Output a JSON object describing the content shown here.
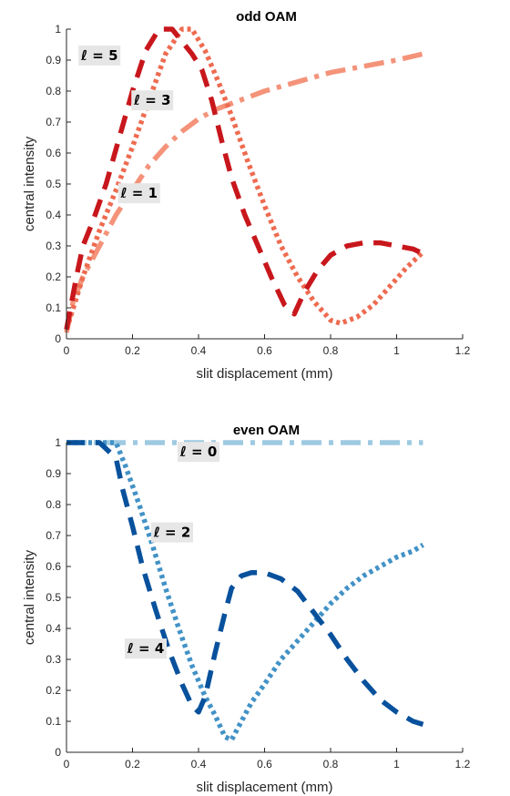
{
  "chart_data": [
    {
      "type": "line",
      "title": "odd OAM",
      "xlabel": "slit displacement (mm)",
      "ylabel": "central intensity",
      "xlim": [
        0,
        1.2
      ],
      "ylim": [
        0,
        1
      ],
      "xticks": [
        "0",
        "0.2",
        "0.4",
        "0.6",
        "0.8",
        "1",
        "1.2"
      ],
      "yticks": [
        "0",
        "0.1",
        "0.2",
        "0.3",
        "0.4",
        "0.5",
        "0.6",
        "0.7",
        "0.8",
        "0.9",
        "1"
      ],
      "grid": false,
      "series": [
        {
          "name": "ℓ = 1",
          "color": "#f4937a",
          "style": "dashdot",
          "x": [
            0,
            0.02,
            0.05,
            0.1,
            0.15,
            0.2,
            0.25,
            0.3,
            0.35,
            0.4,
            0.45,
            0.5,
            0.6,
            0.7,
            0.8,
            0.9,
            1.0,
            1.08
          ],
          "y": [
            0.02,
            0.12,
            0.2,
            0.3,
            0.4,
            0.48,
            0.56,
            0.62,
            0.67,
            0.71,
            0.74,
            0.76,
            0.8,
            0.83,
            0.86,
            0.88,
            0.9,
            0.92
          ]
        },
        {
          "name": "ℓ = 3",
          "color": "#ee6b50",
          "style": "dotted",
          "x": [
            0,
            0.05,
            0.1,
            0.15,
            0.2,
            0.25,
            0.3,
            0.35,
            0.38,
            0.42,
            0.46,
            0.5,
            0.55,
            0.6,
            0.65,
            0.7,
            0.75,
            0.8,
            0.83,
            0.88,
            0.93,
            0.98,
            1.03,
            1.08
          ],
          "y": [
            0.03,
            0.2,
            0.35,
            0.48,
            0.62,
            0.77,
            0.92,
            1.0,
            1.0,
            0.93,
            0.83,
            0.72,
            0.57,
            0.43,
            0.3,
            0.2,
            0.12,
            0.06,
            0.05,
            0.07,
            0.11,
            0.17,
            0.23,
            0.28
          ]
        },
        {
          "name": "ℓ = 5",
          "color": "#c8171c",
          "style": "dashed",
          "x": [
            0,
            0.03,
            0.05,
            0.08,
            0.12,
            0.16,
            0.2,
            0.24,
            0.28,
            0.32,
            0.35,
            0.38,
            0.41,
            0.44,
            0.47,
            0.5,
            0.54,
            0.58,
            0.62,
            0.66,
            0.69,
            0.72,
            0.76,
            0.8,
            0.85,
            0.9,
            0.95,
            1.0,
            1.05,
            1.07
          ],
          "y": [
            0.03,
            0.2,
            0.3,
            0.38,
            0.5,
            0.65,
            0.8,
            0.93,
            1.0,
            1.0,
            0.96,
            0.92,
            0.87,
            0.77,
            0.64,
            0.52,
            0.4,
            0.3,
            0.2,
            0.11,
            0.08,
            0.15,
            0.22,
            0.27,
            0.3,
            0.31,
            0.31,
            0.3,
            0.29,
            0.28
          ]
        }
      ],
      "annotations": [
        {
          "text": "ℓ = 5",
          "x": 0.1,
          "y": 0.915
        },
        {
          "text": "ℓ = 3",
          "x": 0.26,
          "y": 0.77
        },
        {
          "text": "ℓ = 1",
          "x": 0.22,
          "y": 0.47
        }
      ]
    },
    {
      "type": "line",
      "title": "even OAM",
      "xlabel": "slit displacement (mm)",
      "ylabel": "central intensity",
      "xlim": [
        0,
        1.2
      ],
      "ylim": [
        0,
        1
      ],
      "xticks": [
        "0",
        "0.2",
        "0.4",
        "0.6",
        "0.8",
        "1",
        "1.2"
      ],
      "yticks": [
        "0",
        "0.1",
        "0.2",
        "0.3",
        "0.4",
        "0.5",
        "0.6",
        "0.7",
        "0.8",
        "0.9",
        "1"
      ],
      "grid": false,
      "series": [
        {
          "name": "ℓ = 0",
          "color": "#9ecae1",
          "style": "dashdot",
          "x": [
            0,
            0.2,
            0.4,
            0.6,
            0.8,
            1.0,
            1.08
          ],
          "y": [
            1,
            1,
            1,
            1,
            1,
            1,
            1
          ]
        },
        {
          "name": "ℓ = 2",
          "color": "#4292c6",
          "style": "dotted",
          "x": [
            0,
            0.1,
            0.15,
            0.18,
            0.22,
            0.26,
            0.3,
            0.34,
            0.38,
            0.42,
            0.45,
            0.48,
            0.5,
            0.53,
            0.56,
            0.6,
            0.65,
            0.7,
            0.75,
            0.8,
            0.85,
            0.9,
            0.95,
            1.0,
            1.05,
            1.08
          ],
          "y": [
            1,
            1,
            1,
            0.92,
            0.8,
            0.67,
            0.53,
            0.4,
            0.28,
            0.18,
            0.12,
            0.05,
            0.04,
            0.1,
            0.16,
            0.22,
            0.3,
            0.36,
            0.42,
            0.48,
            0.53,
            0.57,
            0.6,
            0.63,
            0.65,
            0.67
          ]
        },
        {
          "name": "ℓ = 4",
          "color": "#08519c",
          "style": "dashed",
          "x": [
            0,
            0.05,
            0.1,
            0.15,
            0.17,
            0.2,
            0.23,
            0.27,
            0.31,
            0.35,
            0.38,
            0.4,
            0.42,
            0.45,
            0.48,
            0.5,
            0.53,
            0.56,
            0.6,
            0.65,
            0.7,
            0.75,
            0.8,
            0.85,
            0.9,
            0.95,
            1.0,
            1.05,
            1.08
          ],
          "y": [
            1,
            1,
            1,
            0.95,
            0.85,
            0.73,
            0.6,
            0.46,
            0.33,
            0.22,
            0.15,
            0.13,
            0.18,
            0.32,
            0.45,
            0.53,
            0.57,
            0.58,
            0.58,
            0.56,
            0.52,
            0.45,
            0.38,
            0.3,
            0.23,
            0.17,
            0.13,
            0.1,
            0.09
          ]
        }
      ],
      "annotations": [
        {
          "text": "ℓ = 0",
          "x": 0.4,
          "y": 0.97
        },
        {
          "text": "ℓ = 2",
          "x": 0.32,
          "y": 0.71
        },
        {
          "text": "ℓ = 4",
          "x": 0.24,
          "y": 0.335
        }
      ]
    }
  ]
}
